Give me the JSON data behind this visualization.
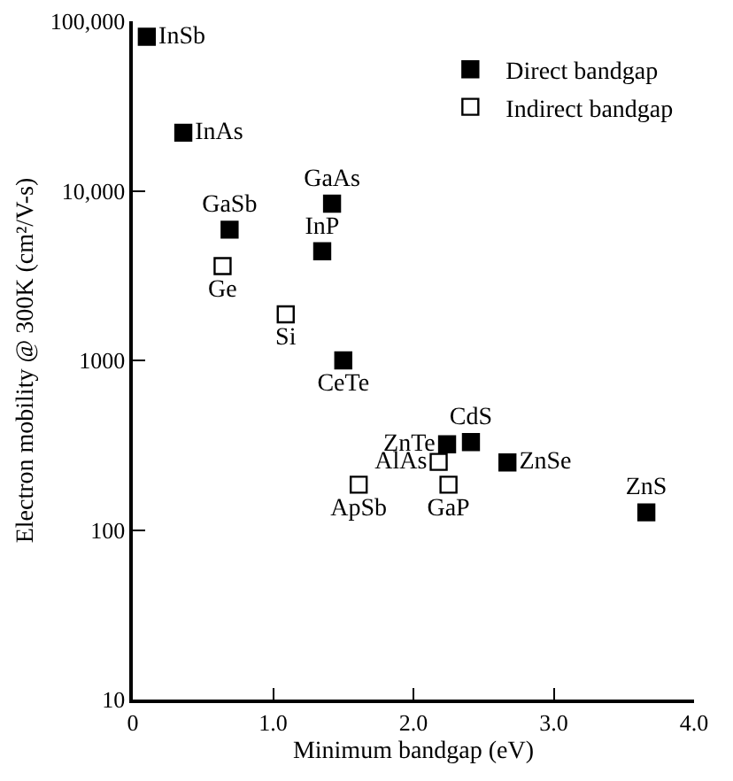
{
  "chart_data": {
    "type": "scatter",
    "xlabel": "Minimum bandgap (eV)",
    "ylabel": "Electron mobility @ 300K (cm²/V-s)",
    "series": [
      {
        "name": "Direct bandgap",
        "color": "#000000",
        "x": [
          0.1,
          0.36,
          1.42,
          0.69,
          1.35,
          1.5,
          2.24,
          2.41,
          2.67,
          3.66
        ],
        "values": [
          81000,
          22000,
          8400,
          5900,
          4400,
          1000,
          320,
          330,
          250,
          127
        ],
        "value_labels": [
          "InSb",
          "InAs",
          "GaAs",
          "GaSb",
          "InP",
          "CeTe",
          "ZnTe",
          "CdS",
          "ZnSe",
          "ZnS"
        ]
      },
      {
        "name": "Indirect bandgap",
        "color": "#ffffff",
        "x": [
          0.64,
          1.09,
          2.18,
          1.61,
          2.25
        ],
        "values": [
          3600,
          1870,
          252,
          185,
          185
        ],
        "value_labels": [
          "Ge",
          "Si",
          "AlAs",
          "ApSb",
          "GaP"
        ]
      }
    ],
    "xlim": [
      0,
      4
    ],
    "xticks": [
      0,
      {
        "value": 1,
        "label": "1.0"
      },
      {
        "value": 2,
        "label": "2.0"
      },
      {
        "value": 3,
        "label": "3.0"
      },
      {
        "value": 4,
        "label": "4.0"
      }
    ],
    "ylim": [
      10,
      100000
    ],
    "yticks": [
      10,
      100,
      1000,
      {
        "value": 10000,
        "label": "10,000"
      },
      {
        "value": 100000,
        "label": "100,000"
      }
    ],
    "log": "y",
    "grid": false,
    "legend": "top right",
    "marker": "square"
  }
}
